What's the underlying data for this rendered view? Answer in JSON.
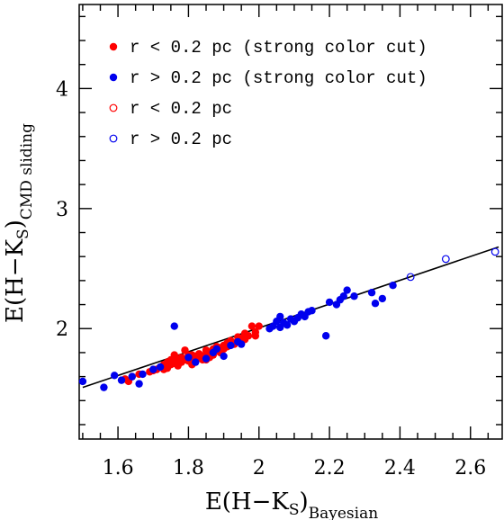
{
  "chart_data": {
    "type": "scatter",
    "xlabel": {
      "main": "E(H−K",
      "sub1": "S",
      "paren": ")",
      "sub2": "Bayesian"
    },
    "ylabel": {
      "main": "E(H−K",
      "sub1": "S",
      "paren": ")",
      "sub2": "CMD sliding"
    },
    "xlim": [
      1.49,
      2.69
    ],
    "ylim": [
      1.08,
      4.7
    ],
    "x_ticks": [
      1.6,
      1.8,
      2.0,
      2.2,
      2.4,
      2.6
    ],
    "x_tick_labels": [
      "1.6",
      "1.8",
      "2",
      "2.2",
      "2.4",
      "2.6"
    ],
    "y_ticks": [
      2,
      3,
      4
    ],
    "y_tick_labels": [
      "2",
      "3",
      "4"
    ],
    "legend_position": "top-left",
    "fit_line": {
      "x": [
        1.5,
        2.68
      ],
      "y": [
        1.51,
        2.68
      ]
    },
    "series": [
      {
        "name": "r < 0.2 pc (strong color cut)",
        "marker": "filled",
        "color": "#ff0000",
        "points": [
          [
            1.62,
            1.58
          ],
          [
            1.63,
            1.56
          ],
          [
            1.64,
            1.6
          ],
          [
            1.66,
            1.62
          ],
          [
            1.7,
            1.65
          ],
          [
            1.71,
            1.66
          ],
          [
            1.72,
            1.68
          ],
          [
            1.73,
            1.7
          ],
          [
            1.74,
            1.72
          ],
          [
            1.74,
            1.67
          ],
          [
            1.75,
            1.7
          ],
          [
            1.75,
            1.74
          ],
          [
            1.76,
            1.71
          ],
          [
            1.77,
            1.69
          ],
          [
            1.77,
            1.75
          ],
          [
            1.78,
            1.72
          ],
          [
            1.78,
            1.76
          ],
          [
            1.79,
            1.74
          ],
          [
            1.8,
            1.73
          ],
          [
            1.8,
            1.78
          ],
          [
            1.81,
            1.75
          ],
          [
            1.81,
            1.7
          ],
          [
            1.82,
            1.77
          ],
          [
            1.82,
            1.73
          ],
          [
            1.83,
            1.76
          ],
          [
            1.83,
            1.79
          ],
          [
            1.84,
            1.77
          ],
          [
            1.84,
            1.74
          ],
          [
            1.85,
            1.79
          ],
          [
            1.85,
            1.82
          ],
          [
            1.86,
            1.8
          ],
          [
            1.86,
            1.76
          ],
          [
            1.87,
            1.83
          ],
          [
            1.87,
            1.78
          ],
          [
            1.88,
            1.82
          ],
          [
            1.88,
            1.85
          ],
          [
            1.89,
            1.84
          ],
          [
            1.89,
            1.8
          ],
          [
            1.9,
            1.86
          ],
          [
            1.9,
            1.83
          ],
          [
            1.91,
            1.88
          ],
          [
            1.91,
            1.85
          ],
          [
            1.92,
            1.9
          ],
          [
            1.93,
            1.87
          ],
          [
            1.94,
            1.9
          ],
          [
            1.94,
            1.93
          ],
          [
            1.95,
            1.92
          ],
          [
            1.96,
            1.91
          ],
          [
            1.97,
            1.94
          ],
          [
            1.98,
            2.02
          ],
          [
            1.99,
            1.97
          ],
          [
            2.0,
            2.02
          ],
          [
            1.99,
            1.94
          ],
          [
            1.79,
            1.82
          ],
          [
            1.76,
            1.78
          ],
          [
            1.73,
            1.66
          ],
          [
            1.85,
            1.74
          ],
          [
            1.96,
            1.96
          ],
          [
            1.69,
            1.64
          ],
          [
            1.81,
            1.78
          ]
        ]
      },
      {
        "name": "r > 0.2 pc (strong color cut)",
        "marker": "filled",
        "color": "#0000ee",
        "points": [
          [
            1.5,
            1.56
          ],
          [
            1.56,
            1.51
          ],
          [
            1.59,
            1.61
          ],
          [
            1.61,
            1.57
          ],
          [
            1.64,
            1.6
          ],
          [
            1.66,
            1.54
          ],
          [
            1.67,
            1.62
          ],
          [
            1.7,
            1.66
          ],
          [
            1.72,
            1.68
          ],
          [
            1.76,
            2.02
          ],
          [
            1.8,
            1.76
          ],
          [
            1.82,
            1.72
          ],
          [
            1.85,
            1.75
          ],
          [
            1.87,
            1.8
          ],
          [
            1.88,
            1.83
          ],
          [
            1.9,
            1.77
          ],
          [
            1.92,
            1.86
          ],
          [
            1.94,
            1.89
          ],
          [
            1.95,
            1.87
          ],
          [
            2.03,
            2.0
          ],
          [
            2.04,
            2.02
          ],
          [
            2.05,
            2.06
          ],
          [
            2.06,
            2.01
          ],
          [
            2.06,
            2.1
          ],
          [
            2.07,
            2.05
          ],
          [
            2.08,
            2.03
          ],
          [
            2.09,
            2.08
          ],
          [
            2.1,
            2.06
          ],
          [
            2.11,
            2.09
          ],
          [
            2.12,
            2.12
          ],
          [
            2.13,
            2.1
          ],
          [
            2.14,
            2.14
          ],
          [
            2.15,
            2.15
          ],
          [
            2.19,
            1.94
          ],
          [
            2.2,
            2.22
          ],
          [
            2.22,
            2.2
          ],
          [
            2.23,
            2.24
          ],
          [
            2.24,
            2.27
          ],
          [
            2.25,
            2.32
          ],
          [
            2.27,
            2.27
          ],
          [
            2.32,
            2.3
          ],
          [
            2.33,
            2.21
          ],
          [
            2.35,
            2.25
          ],
          [
            2.38,
            2.36
          ]
        ]
      },
      {
        "name": "r < 0.2 pc",
        "marker": "open",
        "color": "#ff0000",
        "points": []
      },
      {
        "name": "r > 0.2 pc",
        "marker": "open",
        "color": "#0000ee",
        "points": [
          [
            2.43,
            2.43
          ],
          [
            2.53,
            2.58
          ],
          [
            2.67,
            2.64
          ]
        ]
      }
    ]
  }
}
